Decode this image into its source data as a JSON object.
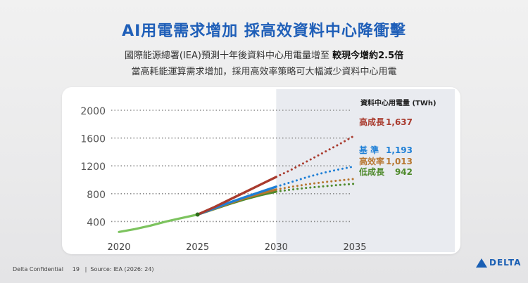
{
  "slide": {
    "title": "AI用電需求增加  採高效資料中心降衝擊",
    "subtitle_1_prefix": "國際能源總署(IEA)預測十年後資料中心用電量增至",
    "subtitle_1_bold": "較現今增約2.5倍",
    "subtitle_2": "當高耗能運算需求增加，採用高效率策略可大幅減少資料中心用電",
    "footer_left": "Delta Confidential",
    "page_number": "19",
    "footer_source": "Source: IEA (2026: 24)",
    "logo_text": "DELTA"
  },
  "chart_data": {
    "type": "line",
    "ylabel": "資料中心用電量 (TWh)",
    "x_ticks": [
      2020,
      2025,
      2030,
      2035
    ],
    "y_ticks": [
      400,
      800,
      1200,
      1600,
      2000
    ],
    "xlim": [
      2020,
      2035
    ],
    "ylim": [
      0,
      2000
    ],
    "grid": "horizontal dotted",
    "projection_shade_start": 2030,
    "historical": {
      "color": "#7cc35e",
      "points": [
        [
          2020,
          250
        ],
        [
          2021,
          290
        ],
        [
          2022,
          340
        ],
        [
          2023,
          400
        ],
        [
          2024,
          450
        ],
        [
          2025,
          500
        ]
      ]
    },
    "series": [
      {
        "name": "高成長",
        "value_label": "1,637",
        "color": "#a93b2e",
        "solid": [
          [
            2025,
            500
          ],
          [
            2026,
            600
          ],
          [
            2027,
            710
          ],
          [
            2028,
            820
          ],
          [
            2029,
            930
          ],
          [
            2030,
            1040
          ]
        ],
        "dotted": [
          [
            2030,
            1040
          ],
          [
            2031,
            1150
          ],
          [
            2032,
            1270
          ],
          [
            2033,
            1390
          ],
          [
            2034,
            1510
          ],
          [
            2035,
            1637
          ]
        ]
      },
      {
        "name": "基  準",
        "value_label": "1,193",
        "color": "#1e7fd6",
        "solid": [
          [
            2025,
            500
          ],
          [
            2026,
            585
          ],
          [
            2027,
            670
          ],
          [
            2028,
            750
          ],
          [
            2029,
            825
          ],
          [
            2030,
            900
          ]
        ],
        "dotted": [
          [
            2030,
            900
          ],
          [
            2031,
            970
          ],
          [
            2032,
            1040
          ],
          [
            2033,
            1100
          ],
          [
            2034,
            1150
          ],
          [
            2035,
            1193
          ]
        ]
      },
      {
        "name": "高效率",
        "value_label": "1,013",
        "color": "#b7762f",
        "solid": [
          [
            2025,
            500
          ],
          [
            2026,
            580
          ],
          [
            2027,
            660
          ],
          [
            2028,
            735
          ],
          [
            2029,
            800
          ],
          [
            2030,
            860
          ]
        ],
        "dotted": [
          [
            2030,
            860
          ],
          [
            2031,
            900
          ],
          [
            2032,
            935
          ],
          [
            2033,
            965
          ],
          [
            2034,
            990
          ],
          [
            2035,
            1013
          ]
        ]
      },
      {
        "name": "低成長",
        "value_label": "942",
        "color": "#4f8a2c",
        "solid": [
          [
            2025,
            500
          ],
          [
            2026,
            575
          ],
          [
            2027,
            650
          ],
          [
            2028,
            720
          ],
          [
            2029,
            780
          ],
          [
            2030,
            830
          ]
        ],
        "dotted": [
          [
            2030,
            830
          ],
          [
            2031,
            860
          ],
          [
            2032,
            885
          ],
          [
            2033,
            905
          ],
          [
            2034,
            925
          ],
          [
            2035,
            942
          ]
        ]
      }
    ]
  }
}
